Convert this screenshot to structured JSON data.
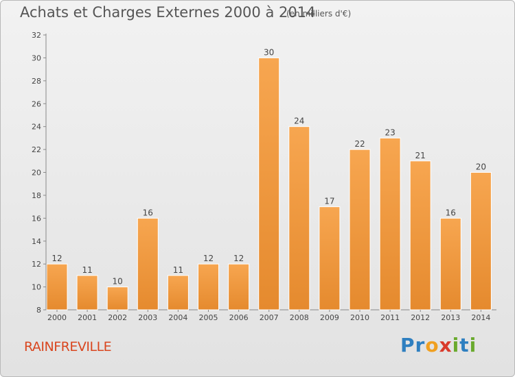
{
  "chart_data": {
    "type": "bar",
    "title": "Achats et Charges Externes 2000 à 2014",
    "subtitle": "(en milliers d'€)",
    "categories": [
      "2000",
      "2001",
      "2002",
      "2003",
      "2004",
      "2005",
      "2006",
      "2007",
      "2008",
      "2009",
      "2010",
      "2011",
      "2012",
      "2013",
      "2014"
    ],
    "values": [
      12,
      11,
      10,
      16,
      11,
      12,
      12,
      30,
      24,
      17,
      22,
      23,
      21,
      16,
      20
    ],
    "ylim": [
      8,
      32
    ],
    "yticks": [
      8,
      10,
      12,
      14,
      16,
      18,
      20,
      22,
      24,
      26,
      28,
      30,
      32
    ],
    "grid": false,
    "legend": "none",
    "bar_color": "#e58a2e",
    "bar_color_light": "#f7a650"
  },
  "commune": "RAINFREVILLE",
  "brand": {
    "letters": [
      "P",
      "r",
      "o",
      "x",
      "i",
      "t",
      "i"
    ],
    "colors": [
      "#2e7fc0",
      "#2e7fc0",
      "#f0a020",
      "#d93a2b",
      "#6aaa2e",
      "#2e7fc0",
      "#6aaa2e"
    ]
  },
  "colors": {
    "commune": "#d9461f",
    "text": "#555555"
  }
}
